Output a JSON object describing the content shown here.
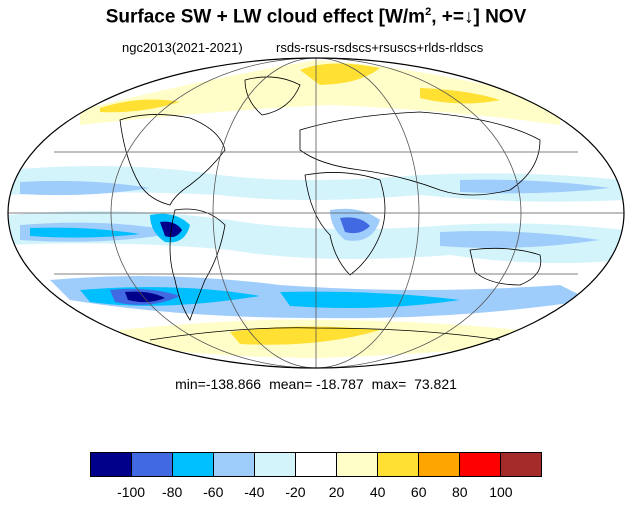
{
  "title": {
    "text": "Surface SW + LW cloud effect [W/m",
    "sup": "2",
    "text_after": ", +=↓]  NOV"
  },
  "subtitle": {
    "left": "ngc2013(2021-2021)",
    "right": "rsds-rsus-rsdscs+rsuscs+rlds-rldscs"
  },
  "stats": {
    "min": "min=-138.866",
    "mean": "mean= -18.787",
    "max": "max=  73.821"
  },
  "colorbar": {
    "colors": [
      "#00008b",
      "#4169e1",
      "#00bfff",
      "#9fcdfb",
      "#d4f4fc",
      "#ffffff",
      "#fffec8",
      "#ffe033",
      "#ffa500",
      "#ff0000",
      "#a52a2a"
    ],
    "ticks": [
      "-100",
      "-80",
      "-60",
      "-40",
      "-20",
      "20",
      "40",
      "60",
      "80",
      "100"
    ]
  }
}
